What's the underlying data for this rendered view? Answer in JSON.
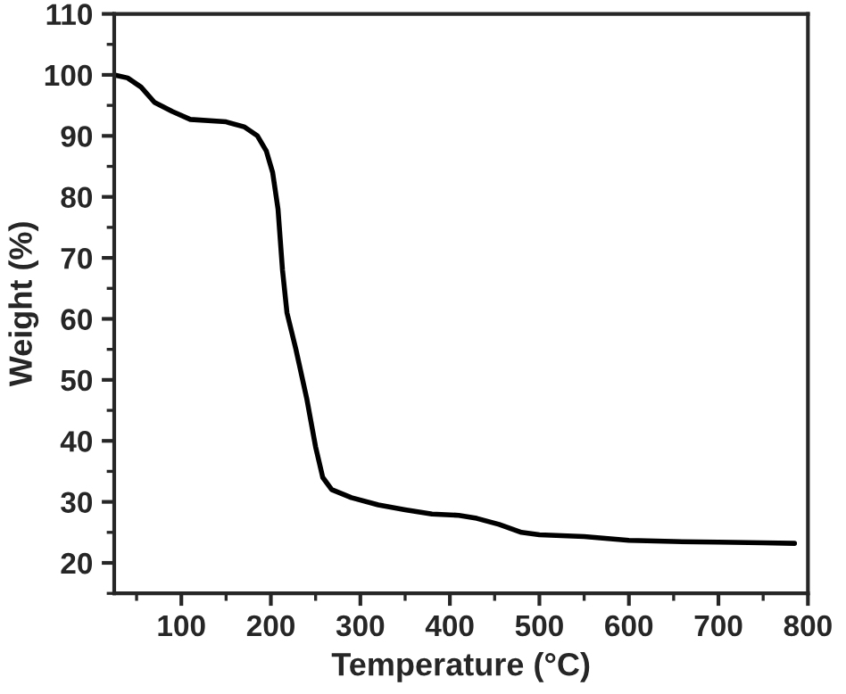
{
  "chart_data": {
    "type": "line",
    "xlabel": "Temperature (°C)",
    "ylabel": "Weight (%)",
    "xlim": [
      25,
      800
    ],
    "ylim": [
      15,
      110
    ],
    "xticks": [
      100,
      200,
      300,
      400,
      500,
      600,
      700,
      800
    ],
    "yticks": [
      20,
      30,
      40,
      50,
      60,
      70,
      80,
      90,
      100,
      110
    ],
    "grid": false,
    "marker": "none",
    "line_style": "solid",
    "series": [
      {
        "color": "#000000",
        "x": [
          25,
          40,
          55,
          70,
          90,
          110,
          150,
          170,
          185,
          195,
          202,
          208,
          213,
          218,
          228,
          240,
          250,
          258,
          268,
          290,
          320,
          350,
          380,
          410,
          430,
          455,
          480,
          500,
          550,
          600,
          650,
          700,
          750,
          785
        ],
        "values": [
          100,
          99.5,
          98,
          95.5,
          94,
          92.7,
          92.3,
          91.5,
          90,
          87.5,
          84,
          78,
          68,
          61,
          55,
          47,
          39,
          34,
          32,
          30.7,
          29.5,
          28.7,
          28,
          27.8,
          27.3,
          26.3,
          25,
          24.6,
          24.3,
          23.7,
          23.5,
          23.4,
          23.3,
          23.2
        ]
      }
    ]
  }
}
